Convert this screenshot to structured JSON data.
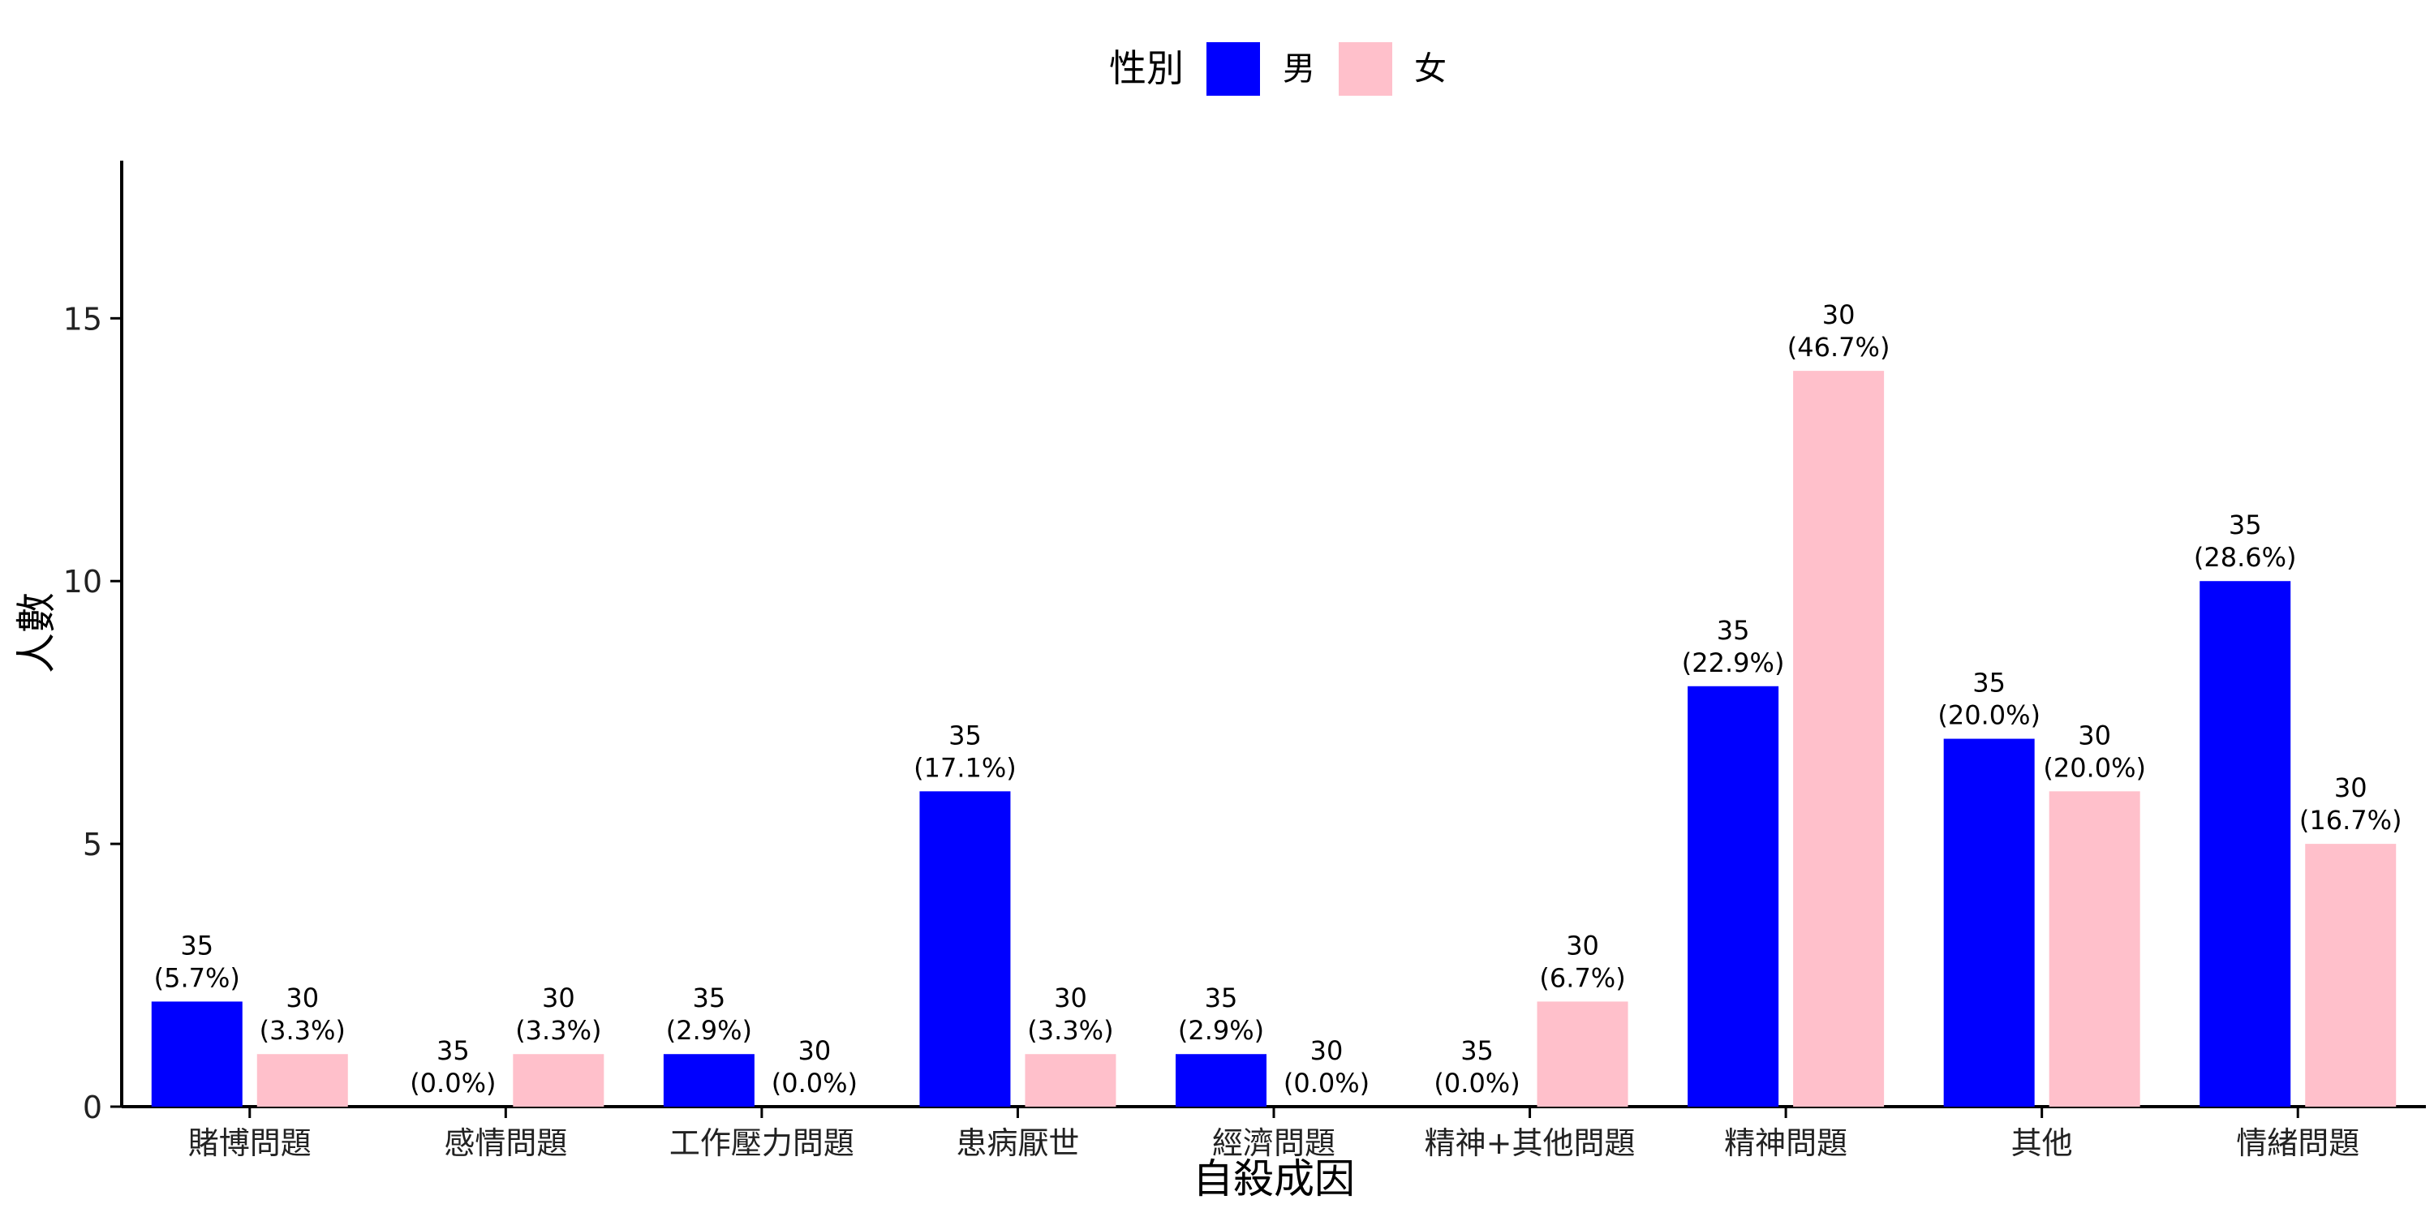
{
  "chart_data": {
    "type": "bar",
    "xlabel": "自殺成因",
    "ylabel": "人數",
    "ylim": [
      0,
      18
    ],
    "yticks": [
      0,
      5,
      10,
      15
    ],
    "grid": false,
    "legend": {
      "title": "性別",
      "placement": "top-center"
    },
    "categories": [
      "賭博問題",
      "感情問題",
      "工作壓力問題",
      "患病厭世",
      "經濟問題",
      "精神+其他問題",
      "精神問題",
      "其他",
      "情緒問題"
    ],
    "series": [
      {
        "name": "男",
        "color": "#0000ff",
        "values": [
          2,
          0,
          1,
          6,
          1,
          0,
          8,
          7,
          10
        ],
        "labels": [
          [
            "35",
            "(5.7%)"
          ],
          [
            "35",
            "(0.0%)"
          ],
          [
            "35",
            "(2.9%)"
          ],
          [
            "35",
            "(17.1%)"
          ],
          [
            "35",
            "(2.9%)"
          ],
          [
            "35",
            "(0.0%)"
          ],
          [
            "35",
            "(22.9%)"
          ],
          [
            "35",
            "(20.0%)"
          ],
          [
            "35",
            "(28.6%)"
          ]
        ]
      },
      {
        "name": "女",
        "color": "#ffc0cb",
        "values": [
          1,
          1,
          0,
          1,
          0,
          2,
          14,
          6,
          5
        ],
        "labels": [
          [
            "30",
            "(3.3%)"
          ],
          [
            "30",
            "(3.3%)"
          ],
          [
            "30",
            "(0.0%)"
          ],
          [
            "30",
            "(3.3%)"
          ],
          [
            "30",
            "(0.0%)"
          ],
          [
            "30",
            "(6.7%)"
          ],
          [
            "30",
            "(46.7%)"
          ],
          [
            "30",
            "(20.0%)"
          ],
          [
            "30",
            "(16.7%)"
          ]
        ]
      }
    ]
  }
}
